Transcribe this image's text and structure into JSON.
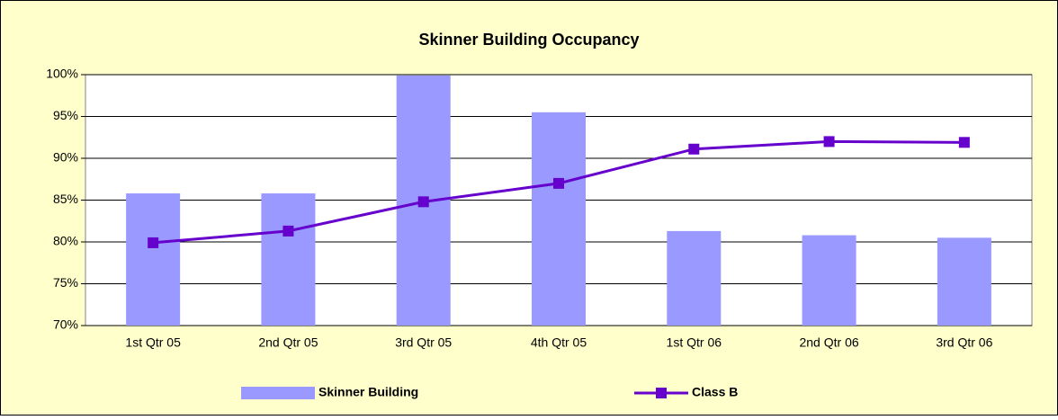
{
  "chart_data": {
    "type": "combo",
    "title": "Skinner Building Occupancy",
    "categories": [
      "1st Qtr 05",
      "2nd Qtr 05",
      "3rd Qtr 05",
      "4th Qtr 05",
      "1st Qtr 06",
      "2nd Qtr 06",
      "3rd Qtr 06"
    ],
    "series": [
      {
        "name": "Skinner Building",
        "type": "bar",
        "color": "#9999ff",
        "values": [
          85.8,
          85.8,
          99.9,
          95.5,
          81.3,
          80.8,
          80.5
        ]
      },
      {
        "name": "Class B",
        "type": "line",
        "color": "#6600cc",
        "values": [
          79.9,
          81.3,
          84.8,
          87.0,
          91.1,
          92.0,
          91.9
        ]
      }
    ],
    "ylim": [
      70,
      100
    ],
    "yticks": [
      {
        "value": 70,
        "label": "70%"
      },
      {
        "value": 75,
        "label": "75%"
      },
      {
        "value": 80,
        "label": "80%"
      },
      {
        "value": 85,
        "label": "85%"
      },
      {
        "value": 90,
        "label": "90%"
      },
      {
        "value": 95,
        "label": "95%"
      },
      {
        "value": 100,
        "label": "100%"
      }
    ],
    "grid": true,
    "legend": "bottom"
  }
}
